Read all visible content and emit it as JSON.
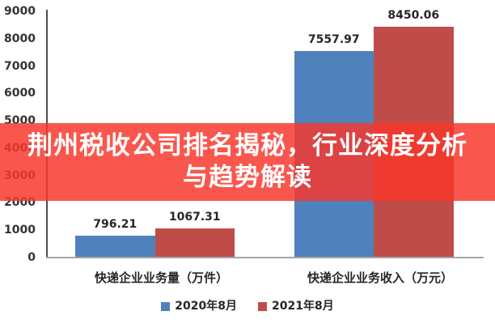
{
  "overlay": {
    "title_line1": "荆州税收公司排名揭秘，行业深度分析",
    "title_line2": "与趋势解读",
    "background_color": "#f8372c",
    "background_opacity": 0.84,
    "text_color": "#ffffff"
  },
  "chart_data": {
    "type": "bar",
    "categories": [
      "快递企业业务量（万件）",
      "快递企业业务收入（万元）"
    ],
    "series": [
      {
        "name": "2020年8月",
        "color": "#4f81bd",
        "values": [
          796.21,
          7557.97
        ]
      },
      {
        "name": "2021年8月",
        "color": "#bf4c49",
        "values": [
          1067.31,
          8450.06
        ]
      }
    ],
    "value_labels": [
      [
        "796.21",
        "7557.97"
      ],
      [
        "1067.31",
        "8450.06"
      ]
    ],
    "ylim": [
      0,
      9000
    ],
    "yticks": [
      0,
      1000,
      2000,
      3000,
      4000,
      5000,
      6000,
      7000,
      8000,
      9000
    ],
    "grid": false,
    "legend_position": "bottom",
    "bar_value_label_color": "#262626",
    "tick_label_color": "#333333"
  }
}
